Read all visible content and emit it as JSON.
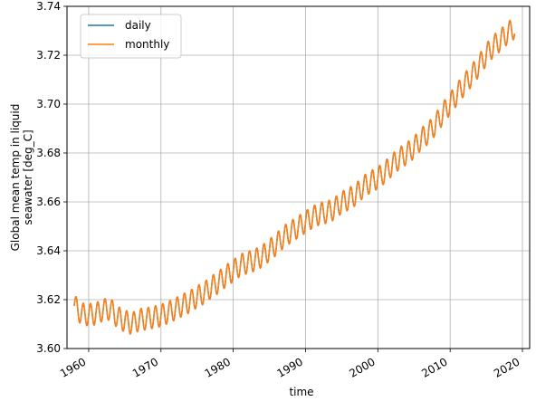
{
  "chart_data": {
    "type": "line",
    "title": "",
    "xlabel": "time",
    "ylabel_lines": [
      "Global mean temp in liquid",
      "seawater [deg_C]"
    ],
    "x_range": [
      "1957-01-01",
      "2021-01-01"
    ],
    "ylim": [
      3.6,
      3.74
    ],
    "x_ticks": [
      {
        "label": "1960",
        "date": "1960-01-01"
      },
      {
        "label": "1970",
        "date": "1970-01-01"
      },
      {
        "label": "1980",
        "date": "1980-01-01"
      },
      {
        "label": "1990",
        "date": "1990-01-01"
      },
      {
        "label": "2000",
        "date": "2000-01-01"
      },
      {
        "label": "2010",
        "date": "2010-01-01"
      },
      {
        "label": "2020",
        "date": "2020-01-01"
      }
    ],
    "y_ticks": [
      "3.60",
      "3.62",
      "3.64",
      "3.66",
      "3.68",
      "3.70",
      "3.72",
      "3.74"
    ],
    "grid": true,
    "legend_position": "top-left",
    "series": [
      {
        "name": "daily",
        "color": "#1f77b4",
        "data": [
          [
            "1958-01-01",
            3.6175
          ],
          [
            "1959-01-01",
            3.6142
          ],
          [
            "1960-01-01",
            3.6138
          ],
          [
            "1961-01-01",
            3.6142
          ],
          [
            "1962-01-01",
            3.6158
          ],
          [
            "1963-01-01",
            3.6162
          ],
          [
            "1964-01-01",
            3.6128
          ],
          [
            "1965-01-01",
            3.6112
          ],
          [
            "1966-01-01",
            3.6102
          ],
          [
            "1967-01-01",
            3.6118
          ],
          [
            "1968-01-01",
            3.6122
          ],
          [
            "1969-01-01",
            3.6128
          ],
          [
            "1970-01-01",
            3.6135
          ],
          [
            "1971-01-01",
            3.6148
          ],
          [
            "1972-01-01",
            3.6162
          ],
          [
            "1973-01-01",
            3.6178
          ],
          [
            "1974-01-01",
            3.6192
          ],
          [
            "1975-01-01",
            3.6212
          ],
          [
            "1976-01-01",
            3.6228
          ],
          [
            "1977-01-01",
            3.6252
          ],
          [
            "1978-01-01",
            3.6272
          ],
          [
            "1979-01-01",
            3.6298
          ],
          [
            "1980-01-01",
            3.6318
          ],
          [
            "1981-01-01",
            3.6342
          ],
          [
            "1982-01-01",
            3.6352
          ],
          [
            "1983-01-01",
            3.6362
          ],
          [
            "1984-01-01",
            3.6378
          ],
          [
            "1985-01-01",
            3.6402
          ],
          [
            "1986-01-01",
            3.6428
          ],
          [
            "1987-01-01",
            3.6458
          ],
          [
            "1988-01-01",
            3.6478
          ],
          [
            "1989-01-01",
            3.6498
          ],
          [
            "1990-01-01",
            3.6518
          ],
          [
            "1991-01-01",
            3.6538
          ],
          [
            "1992-01-01",
            3.6552
          ],
          [
            "1993-01-01",
            3.6558
          ],
          [
            "1994-01-01",
            3.6572
          ],
          [
            "1995-01-01",
            3.6598
          ],
          [
            "1996-01-01",
            3.6612
          ],
          [
            "1997-01-01",
            3.6632
          ],
          [
            "1998-01-01",
            3.6662
          ],
          [
            "1999-01-01",
            3.6682
          ],
          [
            "2000-01-01",
            3.6698
          ],
          [
            "2001-01-01",
            3.6722
          ],
          [
            "2002-01-01",
            3.6752
          ],
          [
            "2003-01-01",
            3.6778
          ],
          [
            "2004-01-01",
            3.6798
          ],
          [
            "2005-01-01",
            3.6822
          ],
          [
            "2006-01-01",
            3.6858
          ],
          [
            "2007-01-01",
            3.6882
          ],
          [
            "2008-01-01",
            3.6918
          ],
          [
            "2009-01-01",
            3.6962
          ],
          [
            "2010-01-01",
            3.7002
          ],
          [
            "2011-01-01",
            3.7042
          ],
          [
            "2012-01-01",
            3.7082
          ],
          [
            "2013-01-01",
            3.7118
          ],
          [
            "2014-01-01",
            3.7158
          ],
          [
            "2015-01-01",
            3.7202
          ],
          [
            "2016-01-01",
            3.7238
          ],
          [
            "2017-01-01",
            3.7262
          ],
          [
            "2018-01-01",
            3.7292
          ],
          [
            "2018-12-01",
            3.7312
          ]
        ]
      },
      {
        "name": "monthly",
        "color": "#ff7f0e",
        "data": [
          [
            "1958-01-01",
            3.6175
          ],
          [
            "1959-01-01",
            3.6142
          ],
          [
            "1960-01-01",
            3.6138
          ],
          [
            "1961-01-01",
            3.6142
          ],
          [
            "1962-01-01",
            3.6158
          ],
          [
            "1963-01-01",
            3.6162
          ],
          [
            "1964-01-01",
            3.6128
          ],
          [
            "1965-01-01",
            3.6112
          ],
          [
            "1966-01-01",
            3.6102
          ],
          [
            "1967-01-01",
            3.6118
          ],
          [
            "1968-01-01",
            3.6122
          ],
          [
            "1969-01-01",
            3.6128
          ],
          [
            "1970-01-01",
            3.6135
          ],
          [
            "1971-01-01",
            3.6148
          ],
          [
            "1972-01-01",
            3.6162
          ],
          [
            "1973-01-01",
            3.6178
          ],
          [
            "1974-01-01",
            3.6192
          ],
          [
            "1975-01-01",
            3.6212
          ],
          [
            "1976-01-01",
            3.6228
          ],
          [
            "1977-01-01",
            3.6252
          ],
          [
            "1978-01-01",
            3.6272
          ],
          [
            "1979-01-01",
            3.6298
          ],
          [
            "1980-01-01",
            3.6318
          ],
          [
            "1981-01-01",
            3.6342
          ],
          [
            "1982-01-01",
            3.6352
          ],
          [
            "1983-01-01",
            3.6362
          ],
          [
            "1984-01-01",
            3.6378
          ],
          [
            "1985-01-01",
            3.6402
          ],
          [
            "1986-01-01",
            3.6428
          ],
          [
            "1987-01-01",
            3.6458
          ],
          [
            "1988-01-01",
            3.6478
          ],
          [
            "1989-01-01",
            3.6498
          ],
          [
            "1990-01-01",
            3.6518
          ],
          [
            "1991-01-01",
            3.6538
          ],
          [
            "1992-01-01",
            3.6552
          ],
          [
            "1993-01-01",
            3.6558
          ],
          [
            "1994-01-01",
            3.6572
          ],
          [
            "1995-01-01",
            3.6598
          ],
          [
            "1996-01-01",
            3.6612
          ],
          [
            "1997-01-01",
            3.6632
          ],
          [
            "1998-01-01",
            3.6662
          ],
          [
            "1999-01-01",
            3.6682
          ],
          [
            "2000-01-01",
            3.6698
          ],
          [
            "2001-01-01",
            3.6722
          ],
          [
            "2002-01-01",
            3.6752
          ],
          [
            "2003-01-01",
            3.6778
          ],
          [
            "2004-01-01",
            3.6798
          ],
          [
            "2005-01-01",
            3.6822
          ],
          [
            "2006-01-01",
            3.6858
          ],
          [
            "2007-01-01",
            3.6882
          ],
          [
            "2008-01-01",
            3.6918
          ],
          [
            "2009-01-01",
            3.6962
          ],
          [
            "2010-01-01",
            3.7002
          ],
          [
            "2011-01-01",
            3.7042
          ],
          [
            "2012-01-01",
            3.7082
          ],
          [
            "2013-01-01",
            3.7118
          ],
          [
            "2014-01-01",
            3.7158
          ],
          [
            "2015-01-01",
            3.7202
          ],
          [
            "2016-01-01",
            3.7238
          ],
          [
            "2017-01-01",
            3.7262
          ],
          [
            "2018-01-01",
            3.7292
          ],
          [
            "2018-12-01",
            3.7312
          ]
        ],
        "seasonal_amplitude": 0.0045
      }
    ]
  }
}
